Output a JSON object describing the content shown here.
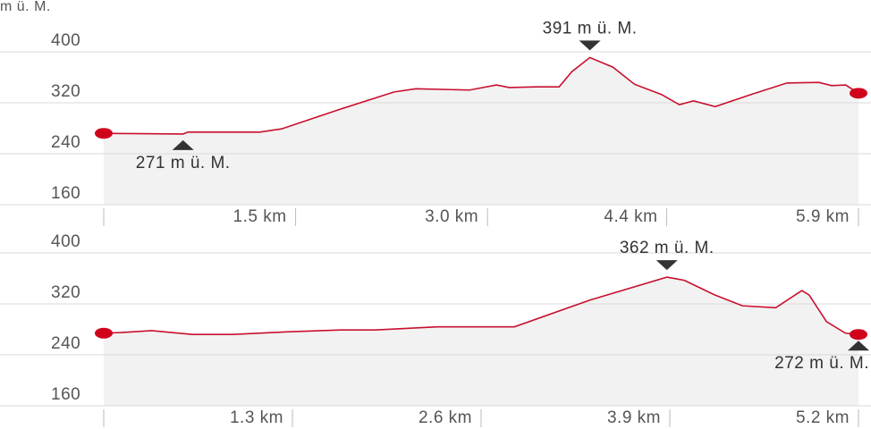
{
  "chart_data": [
    {
      "type": "line",
      "y_label": "m ü. M.",
      "color": "#c8102e",
      "fill": "#f2f2f2",
      "grid": true,
      "x": [
        0,
        0.62,
        0.66,
        1.22,
        1.39,
        1.85,
        2.27,
        2.44,
        2.86,
        3.07,
        3.17,
        3.38,
        3.56,
        3.66,
        3.8,
        3.98,
        4.15,
        4.36,
        4.5,
        4.61,
        4.78,
        5.06,
        5.34,
        5.59,
        5.69,
        5.8,
        5.9
      ],
      "values": [
        272,
        271,
        274,
        274,
        279,
        310,
        337,
        342,
        340,
        348,
        344,
        345,
        345,
        369,
        391,
        376,
        349,
        333,
        317,
        323,
        314,
        333,
        351,
        352,
        347,
        348,
        335
      ],
      "xlim": [
        0,
        5.9
      ],
      "ylim": [
        160,
        440
      ],
      "xticks": [
        {
          "value": 1.5,
          "label": "1.5 km"
        },
        {
          "value": 3.0,
          "label": "3.0 km"
        },
        {
          "value": 4.4,
          "label": "4.4 km"
        },
        {
          "value": 5.9,
          "label": "5.9 km"
        }
      ],
      "yticks": [
        160,
        240,
        320,
        400
      ],
      "annotations": [
        {
          "text": "391 m ü. M.",
          "x": 3.8,
          "y": 391,
          "position": "above"
        },
        {
          "text": "271 m ü. M.",
          "x": 0.62,
          "y": 271,
          "position": "below"
        }
      ]
    },
    {
      "type": "line",
      "color": "#c8102e",
      "fill": "#f2f2f2",
      "grid": true,
      "x": [
        0,
        0.12,
        0.33,
        0.61,
        0.89,
        1.26,
        1.63,
        1.87,
        2.3,
        2.83,
        3.35,
        3.88,
        4.0,
        4.21,
        4.4,
        4.63,
        4.81,
        4.86,
        4.98,
        5.11,
        5.2
      ],
      "values": [
        274,
        275,
        278,
        272,
        272,
        276,
        279,
        279,
        284,
        284,
        326,
        362,
        357,
        334,
        317,
        314,
        341,
        334,
        292,
        274,
        272
      ],
      "xlim": [
        0,
        5.2
      ],
      "ylim": [
        160,
        440
      ],
      "xticks": [
        {
          "value": 1.3,
          "label": "1.3 km"
        },
        {
          "value": 2.6,
          "label": "2.6 km"
        },
        {
          "value": 3.9,
          "label": "3.9 km"
        },
        {
          "value": 5.2,
          "label": "5.2 km"
        }
      ],
      "yticks": [
        160,
        240,
        320,
        400
      ],
      "annotations": [
        {
          "text": "362 m ü. M.",
          "x": 3.88,
          "y": 362,
          "position": "above"
        },
        {
          "text": "272 m ü. M.",
          "x": 5.2,
          "y": 272,
          "position": "below"
        }
      ]
    }
  ]
}
